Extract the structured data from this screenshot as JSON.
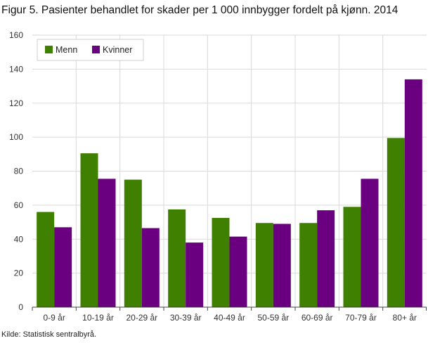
{
  "title": "Figur 5. Pasienter behandlet for skader per 1 000 innbygger fordelt på kjønn. 2014",
  "source": "Kilde: Statistisk sentralbyrå.",
  "chart_data": {
    "type": "bar",
    "categories": [
      "0-9 år",
      "10-19 år",
      "20-29 år",
      "30-39 år",
      "40-49 år",
      "50-59 år",
      "60-69 år",
      "70-79 år",
      "80+ år"
    ],
    "series": [
      {
        "name": "Menn",
        "color": "#3f8000",
        "values": [
          56,
          90.5,
          75,
          57.5,
          52.5,
          49.5,
          49.5,
          59,
          99.5
        ]
      },
      {
        "name": "Kvinner",
        "color": "#6a0080",
        "values": [
          47,
          75.5,
          46.5,
          38,
          41.5,
          49,
          57,
          75.5,
          134
        ]
      }
    ],
    "ylim": [
      0,
      160
    ],
    "yticks": [
      0,
      20,
      40,
      60,
      80,
      100,
      120,
      140,
      160
    ],
    "grid": true,
    "legend_position": "top-left"
  }
}
